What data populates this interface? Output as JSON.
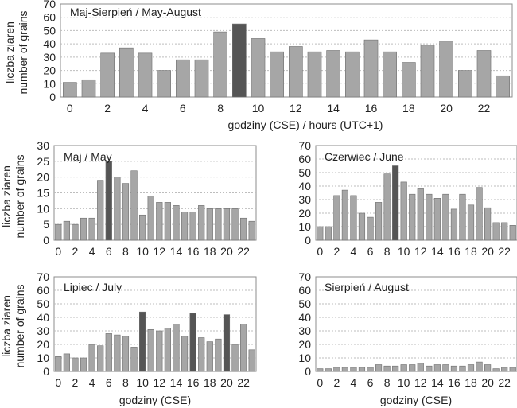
{
  "shared": {
    "ylabel_line1": "liczba ziaren",
    "ylabel_line2": "number of grains"
  },
  "colors": {
    "bar": "#a6a6a6",
    "highlight": "#555555",
    "grid": "#bdbdbd",
    "frame": "#8c8c8c"
  },
  "chart_data": [
    {
      "type": "bar",
      "title": "Maj-Sierpień / May-August",
      "xlabel": "godziny (CSE) / hours (UTC+1)",
      "ylabel": "liczba ziaren / number of grains",
      "ylim": [
        0,
        70
      ],
      "yticks": [
        "0",
        "10",
        "20",
        "30",
        "40",
        "50",
        "60",
        "70"
      ],
      "xtick_labels": [
        "0",
        "2",
        "4",
        "6",
        "8",
        "10",
        "12",
        "14",
        "16",
        "18",
        "20",
        "22"
      ],
      "x": [
        0,
        1,
        2,
        3,
        4,
        5,
        6,
        7,
        8,
        9,
        10,
        11,
        12,
        13,
        14,
        15,
        16,
        17,
        18,
        19,
        20,
        21,
        22,
        23
      ],
      "values": [
        11,
        13,
        33,
        37,
        33,
        20,
        28,
        28,
        49,
        55,
        44,
        34,
        38,
        34,
        35,
        34,
        43,
        34,
        26,
        39,
        42,
        20,
        35,
        16
      ],
      "highlight": [
        9
      ],
      "grid": "y"
    },
    {
      "type": "bar",
      "title": "Maj / May",
      "xlabel": "",
      "ylim": [
        0,
        30
      ],
      "yticks": [
        "0",
        "5",
        "10",
        "15",
        "20",
        "25",
        "30"
      ],
      "xtick_labels": [
        "0",
        "2",
        "4",
        "6",
        "8",
        "10",
        "12",
        "14",
        "16",
        "18",
        "20",
        "22"
      ],
      "x": [
        0,
        1,
        2,
        3,
        4,
        5,
        6,
        7,
        8,
        9,
        10,
        11,
        12,
        13,
        14,
        15,
        16,
        17,
        18,
        19,
        20,
        21,
        22,
        23
      ],
      "values": [
        5,
        6,
        5,
        7,
        7,
        19,
        25,
        20,
        18,
        22,
        8,
        14,
        12,
        12,
        11,
        9,
        9,
        11,
        10,
        10,
        10,
        10,
        7,
        6
      ],
      "highlight": [
        6
      ],
      "grid": "y"
    },
    {
      "type": "bar",
      "title": "Czerwiec / June",
      "xlabel": "",
      "ylim": [
        0,
        70
      ],
      "yticks": [
        "0",
        "10",
        "20",
        "30",
        "40",
        "50",
        "60",
        "70"
      ],
      "xtick_labels": [
        "0",
        "2",
        "4",
        "6",
        "8",
        "10",
        "12",
        "14",
        "16",
        "18",
        "20",
        "22"
      ],
      "x": [
        0,
        1,
        2,
        3,
        4,
        5,
        6,
        7,
        8,
        9,
        10,
        11,
        12,
        13,
        14,
        15,
        16,
        17,
        18,
        19,
        20,
        21,
        22,
        23
      ],
      "values": [
        10,
        10,
        33,
        37,
        33,
        20,
        17,
        28,
        49,
        55,
        43,
        34,
        38,
        34,
        31,
        34,
        23,
        34,
        26,
        39,
        24,
        13,
        13,
        11
      ],
      "highlight": [
        9
      ],
      "grid": "y"
    },
    {
      "type": "bar",
      "title": "Lipiec / July",
      "xlabel": "godziny (CSE)",
      "ylim": [
        0,
        70
      ],
      "yticks": [
        "0",
        "10",
        "20",
        "30",
        "40",
        "50",
        "60",
        "70"
      ],
      "xtick_labels": [
        "0",
        "2",
        "4",
        "6",
        "8",
        "10",
        "12",
        "14",
        "16",
        "18",
        "20",
        "22"
      ],
      "x": [
        0,
        1,
        2,
        3,
        4,
        5,
        6,
        7,
        8,
        9,
        10,
        11,
        12,
        13,
        14,
        15,
        16,
        17,
        18,
        19,
        20,
        21,
        22,
        23
      ],
      "values": [
        11,
        13,
        10,
        10,
        20,
        19,
        28,
        27,
        26,
        18,
        44,
        31,
        30,
        32,
        35,
        26,
        43,
        25,
        22,
        24,
        42,
        20,
        35,
        16
      ],
      "highlight": [
        10,
        16,
        20
      ],
      "grid": "y"
    },
    {
      "type": "bar",
      "title": "Sierpień / August",
      "xlabel": "godziny (CSE)",
      "ylim": [
        0,
        70
      ],
      "yticks": [
        "0",
        "10",
        "20",
        "30",
        "40",
        "50",
        "60",
        "70"
      ],
      "xtick_labels": [
        "0",
        "2",
        "4",
        "6",
        "8",
        "10",
        "12",
        "14",
        "16",
        "18",
        "20",
        "22"
      ],
      "x": [
        0,
        1,
        2,
        3,
        4,
        5,
        6,
        7,
        8,
        9,
        10,
        11,
        12,
        13,
        14,
        15,
        16,
        17,
        18,
        19,
        20,
        21,
        22,
        23
      ],
      "values": [
        2,
        2,
        3,
        3,
        3,
        3,
        3,
        5,
        4,
        4,
        5,
        5,
        6,
        4,
        5,
        5,
        4,
        4,
        5,
        7,
        5,
        2,
        3,
        3
      ],
      "highlight": [],
      "grid": "y"
    }
  ]
}
